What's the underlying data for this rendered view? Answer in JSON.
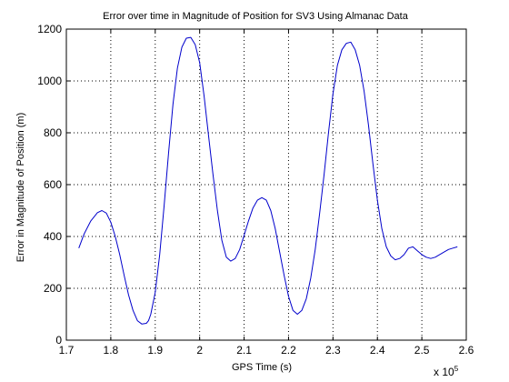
{
  "chart_data": {
    "type": "line",
    "title": "Error over time in Magnitude of Position for SV3 Using Almanac Data",
    "xlabel": "GPS Time (s)",
    "ylabel": "Error in Magnitude of Position (m)",
    "x_multiplier": "x 10",
    "x_multiplier_exp": "5",
    "xlim": [
      1.7,
      2.6
    ],
    "ylim": [
      0,
      1200
    ],
    "xticks": [
      1.7,
      1.8,
      1.9,
      2.0,
      2.1,
      2.2,
      2.3,
      2.4,
      2.5,
      2.6
    ],
    "yticks": [
      0,
      200,
      400,
      600,
      800,
      1000,
      1200
    ],
    "xtick_labels": [
      "1.7",
      "1.8",
      "1.9",
      "2",
      "2.1",
      "2.2",
      "2.3",
      "2.4",
      "2.5",
      "2.6"
    ],
    "ytick_labels": [
      "0",
      "200",
      "400",
      "600",
      "800",
      "1000",
      "1200"
    ],
    "grid": true,
    "grid_style": "dotted",
    "series": [
      {
        "color": "#0000cc",
        "x": [
          1.728,
          1.74,
          1.755,
          1.77,
          1.78,
          1.79,
          1.8,
          1.81,
          1.82,
          1.83,
          1.84,
          1.85,
          1.86,
          1.87,
          1.88,
          1.885,
          1.89,
          1.9,
          1.91,
          1.92,
          1.93,
          1.94,
          1.95,
          1.96,
          1.97,
          1.98,
          1.99,
          2.0,
          2.01,
          2.02,
          2.03,
          2.04,
          2.05,
          2.06,
          2.07,
          2.08,
          2.09,
          2.1,
          2.11,
          2.12,
          2.13,
          2.14,
          2.15,
          2.16,
          2.17,
          2.18,
          2.19,
          2.2,
          2.21,
          2.22,
          2.23,
          2.24,
          2.25,
          2.26,
          2.27,
          2.28,
          2.29,
          2.3,
          2.31,
          2.32,
          2.33,
          2.34,
          2.35,
          2.36,
          2.37,
          2.38,
          2.39,
          2.4,
          2.41,
          2.42,
          2.43,
          2.44,
          2.45,
          2.46,
          2.47,
          2.48,
          2.49,
          2.5,
          2.51,
          2.52,
          2.53,
          2.54,
          2.55,
          2.56,
          2.57,
          2.58
        ],
        "y": [
          355,
          410,
          460,
          492,
          500,
          490,
          455,
          400,
          330,
          250,
          175,
          115,
          75,
          62,
          65,
          75,
          100,
          185,
          330,
          520,
          720,
          910,
          1050,
          1130,
          1165,
          1168,
          1140,
          1070,
          940,
          790,
          640,
          500,
          385,
          320,
          305,
          315,
          350,
          405,
          460,
          510,
          540,
          550,
          540,
          500,
          430,
          340,
          250,
          170,
          115,
          100,
          115,
          160,
          240,
          350,
          490,
          640,
          800,
          950,
          1060,
          1120,
          1145,
          1150,
          1120,
          1060,
          960,
          830,
          680,
          540,
          430,
          360,
          325,
          310,
          315,
          330,
          355,
          360,
          345,
          330,
          320,
          315,
          320,
          330,
          340,
          350,
          355,
          360
        ]
      }
    ]
  }
}
